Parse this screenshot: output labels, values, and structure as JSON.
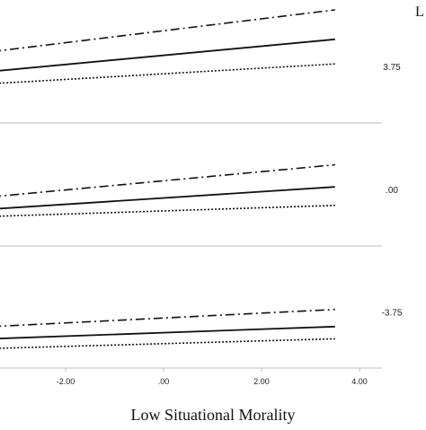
{
  "chart_data": {
    "type": "line",
    "title": "",
    "xlabel": "Low Situational Morality",
    "ylabel": "",
    "legend_title_fragment": "L",
    "xlim": [
      -3.5,
      4.2
    ],
    "x_ticks": [
      {
        "value": -2,
        "label": "-2.00"
      },
      {
        "value": 0,
        "label": ".00"
      },
      {
        "value": 2,
        "label": "2.00"
      },
      {
        "value": 4,
        "label": "4.00"
      }
    ],
    "grid": false,
    "panels": [
      {
        "label": "3.75",
        "ylim": [
          0,
          1
        ],
        "series": [
          {
            "style": "dash-dot",
            "x": [
              -3.5,
              3.5
            ],
            "y": [
              0.58,
              0.92
            ]
          },
          {
            "style": "solid",
            "x": [
              -3.5,
              3.5
            ],
            "y": [
              0.42,
              0.68
            ]
          },
          {
            "style": "dotted",
            "x": [
              -3.5,
              3.5
            ],
            "y": [
              0.32,
              0.48
            ]
          }
        ]
      },
      {
        "label": ".00",
        "ylim": [
          0,
          1
        ],
        "series": [
          {
            "style": "dash-dot",
            "x": [
              -3.5,
              3.5
            ],
            "y": [
              0.4,
              0.66
            ]
          },
          {
            "style": "solid",
            "x": [
              -3.5,
              3.5
            ],
            "y": [
              0.3,
              0.48
            ]
          },
          {
            "style": "dotted",
            "x": [
              -3.5,
              3.5
            ],
            "y": [
              0.24,
              0.33
            ]
          }
        ]
      },
      {
        "label": "-3.75",
        "ylim": [
          0,
          1
        ],
        "series": [
          {
            "style": "dash-dot",
            "x": [
              -3.5,
              3.5
            ],
            "y": [
              0.34,
              0.48
            ]
          },
          {
            "style": "solid",
            "x": [
              -3.5,
              3.5
            ],
            "y": [
              0.24,
              0.34
            ]
          },
          {
            "style": "dotted",
            "x": [
              -3.5,
              3.5
            ],
            "y": [
              0.16,
              0.24
            ]
          }
        ]
      }
    ]
  }
}
